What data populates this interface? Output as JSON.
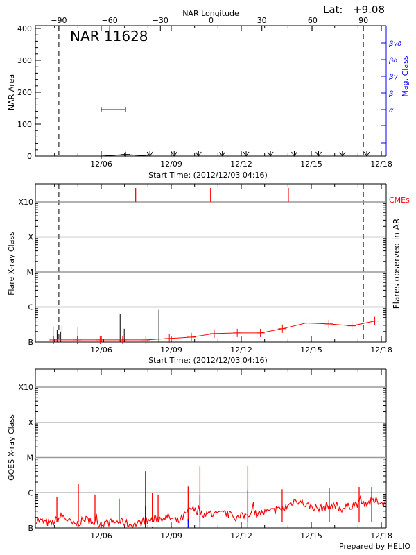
{
  "footer": "Prepared by HELIO",
  "colors": {
    "axis": "#000000",
    "mag_class": "#0000ff",
    "flares_mean": "#ff0000",
    "cme": "#ff0000",
    "goes_long": "#ff0000",
    "goes_short": "#0000ff",
    "grid": "#999999"
  },
  "chart_data": [
    {
      "type": "line",
      "title": "NAR 11628",
      "lat_label": "Lat:",
      "lat_value": "+9.08",
      "xlabel": "Start Time: (2012/12/03 04:16)",
      "ylabel": "NAR Area",
      "ylim": [
        0,
        400
      ],
      "yticks": [
        "0",
        "100",
        "200",
        "300",
        "400"
      ],
      "xticks": [
        "12/06",
        "12/09",
        "12/12",
        "12/15",
        "12/18"
      ],
      "xrange": [
        "2012-12-03 04:16",
        "2012-12-18 04:45"
      ],
      "top_axis": {
        "label": "NAR Longitude",
        "ticks": [
          "-90",
          "-60",
          "-30",
          "0",
          "30",
          "60",
          "90"
        ]
      },
      "limb_longitudes": [
        -90,
        90
      ],
      "right_axis": {
        "label": "Mag. Class",
        "ticks": [
          "α",
          "β",
          "βγ",
          "βδ",
          "βγδ"
        ]
      },
      "area": [
        {
          "time": "2012-12-06 00:00",
          "value": 0
        },
        {
          "time": "2012-12-07 01:00",
          "value": 5
        }
      ],
      "area_zero_markers": [
        "2012-12-08 02:00",
        "2012-12-09 03:00",
        "2012-12-10 04:00",
        "2012-12-11 04:30",
        "2012-12-12 05:00",
        "2012-12-13 06:00",
        "2012-12-14 06:30",
        "2012-12-15 07:30",
        "2012-12-16 08:00",
        "2012-12-17 09:00"
      ],
      "mag_class": [
        {
          "time": "2012-12-06 00:00",
          "class": "α"
        },
        {
          "time": "2012-12-07 01:00",
          "class": "α"
        }
      ]
    },
    {
      "type": "line",
      "xlabel": "Start Time: (2012/12/03 04:16)",
      "ylabel": "Flare X-ray Class",
      "right_label": "Flares observed in AR",
      "cme_label": "CMEs",
      "yscale": "log",
      "ylim": [
        1e-07,
        0.001
      ],
      "yticks": [
        {
          "label": "B",
          "flux": 1e-07
        },
        {
          "label": "C",
          "flux": 1e-06
        },
        {
          "label": "M",
          "flux": 1e-05
        },
        {
          "label": "X",
          "flux": 0.0001
        },
        {
          "label": "X10",
          "flux": 0.001
        }
      ],
      "xticks": [
        "12/06",
        "12/09",
        "12/12",
        "12/15",
        "12/18"
      ],
      "grid": true,
      "flares": [
        {
          "time": "2012-12-03 22:35",
          "flux": 2.7e-07
        },
        {
          "time": "2012-12-04 02:40",
          "flux": 2.2e-07
        },
        {
          "time": "2012-12-04 06:10",
          "flux": 2e-07
        },
        {
          "time": "2012-12-04 07:40",
          "flux": 3.1e-07
        },
        {
          "time": "2012-12-05 00:00",
          "flux": 2.6e-07
        },
        {
          "time": "2012-12-06 02:30",
          "flux": 1.2e-07
        },
        {
          "time": "2012-12-06 19:25",
          "flux": 6.4e-07
        },
        {
          "time": "2012-12-06 23:40",
          "flux": 2.4e-07
        },
        {
          "time": "2012-12-08 11:15",
          "flux": 8.3e-07
        }
      ],
      "mean_flux": [
        {
          "time": "2012-12-03 23:00",
          "flux": 1.15e-07
        },
        {
          "time": "2012-12-04 23:30",
          "flux": 1.15e-07
        },
        {
          "time": "2012-12-05 22:50",
          "flux": 1.15e-07
        },
        {
          "time": "2012-12-06 22:00",
          "flux": 1.15e-07
        },
        {
          "time": "2012-12-07 21:50",
          "flux": 1.15e-07
        },
        {
          "time": "2012-12-08 22:00",
          "flux": 1.26e-07
        },
        {
          "time": "2012-12-09 20:40",
          "flux": 1.38e-07
        },
        {
          "time": "2012-12-10 20:10",
          "flux": 1.74e-07
        },
        {
          "time": "2012-12-11 19:50",
          "flux": 1.82e-07
        },
        {
          "time": "2012-12-12 19:40",
          "flux": 1.82e-07
        },
        {
          "time": "2012-12-13 18:15",
          "flux": 2.4e-07
        },
        {
          "time": "2012-12-14 18:40",
          "flux": 3.5e-07
        },
        {
          "time": "2012-12-15 18:00",
          "flux": 3.3e-07
        },
        {
          "time": "2012-12-16 17:45",
          "flux": 2.9e-07
        },
        {
          "time": "2012-12-17 17:15",
          "flux": 4e-07
        }
      ],
      "cmes": [
        "2012-12-07 11:15",
        "2012-12-07 12:30",
        "2012-12-10 16:20",
        "2012-12-14 00:30"
      ]
    },
    {
      "type": "line",
      "ylabel": "GOES X-ray Class",
      "yscale": "log",
      "ylim": [
        1e-07,
        0.001
      ],
      "yticks": [
        {
          "label": "B",
          "flux": 1e-07
        },
        {
          "label": "C",
          "flux": 1e-06
        },
        {
          "label": "M",
          "flux": 1e-05
        },
        {
          "label": "X",
          "flux": 0.0001
        },
        {
          "label": "X10",
          "flux": 0.001
        }
      ],
      "xticks": [
        "12/06",
        "12/09",
        "12/12",
        "12/15",
        "12/18"
      ],
      "grid": true,
      "long_channel_baseline": [
        {
          "time": "2012-12-03 08:00",
          "flux": 1.64e-07
        },
        {
          "time": "2012-12-03 20:00",
          "flux": 1.31e-07
        },
        {
          "time": "2012-12-04 08:00",
          "flux": 2.2e-07
        },
        {
          "time": "2012-12-04 20:00",
          "flux": 1.2e-07
        },
        {
          "time": "2012-12-05 08:00",
          "flux": 1.77e-07
        },
        {
          "time": "2012-12-05 20:00",
          "flux": 1.31e-07
        },
        {
          "time": "2012-12-06 08:00",
          "flux": 1.41e-07
        },
        {
          "time": "2012-12-06 20:00",
          "flux": 1.52e-07
        },
        {
          "time": "2012-12-07 08:00",
          "flux": 1.2e-07
        },
        {
          "time": "2012-12-07 20:00",
          "flux": 1.52e-07
        },
        {
          "time": "2012-12-08 08:00",
          "flux": 1.77e-07
        },
        {
          "time": "2012-12-08 20:00",
          "flux": 2.06e-07
        },
        {
          "time": "2012-12-09 08:00",
          "flux": 1.52e-07
        },
        {
          "time": "2012-12-09 20:00",
          "flux": 3.5e-07
        },
        {
          "time": "2012-12-10 08:00",
          "flux": 2.6e-07
        },
        {
          "time": "2012-12-10 20:00",
          "flux": 2.4e-07
        },
        {
          "time": "2012-12-11 08:00",
          "flux": 2.6e-07
        },
        {
          "time": "2012-12-11 20:00",
          "flux": 1.9e-07
        },
        {
          "time": "2012-12-12 08:00",
          "flux": 2.6e-07
        },
        {
          "time": "2012-12-12 20:00",
          "flux": 2.6e-07
        },
        {
          "time": "2012-12-13 08:00",
          "flux": 3e-07
        },
        {
          "time": "2012-12-13 20:00",
          "flux": 3.5e-07
        },
        {
          "time": "2012-12-14 08:00",
          "flux": 6.4e-07
        },
        {
          "time": "2012-12-14 20:00",
          "flux": 4.4e-07
        },
        {
          "time": "2012-12-15 08:00",
          "flux": 3.5e-07
        },
        {
          "time": "2012-12-15 20:00",
          "flux": 4.4e-07
        },
        {
          "time": "2012-12-16 08:00",
          "flux": 3.5e-07
        },
        {
          "time": "2012-12-16 20:00",
          "flux": 4.7e-07
        },
        {
          "time": "2012-12-17 08:00",
          "flux": 5.1e-07
        },
        {
          "time": "2012-12-17 20:00",
          "flux": 5.9e-07
        },
        {
          "time": "2012-12-18 04:00",
          "flux": 4.7e-07
        }
      ],
      "long_channel_peaks": [
        {
          "time": "2012-12-04 02:25",
          "flux": 7.4e-07
        },
        {
          "time": "2012-12-05 00:30",
          "flux": 1.8e-06
        },
        {
          "time": "2012-12-05 17:35",
          "flux": 8.9e-07
        },
        {
          "time": "2012-12-06 18:30",
          "flux": 6.8e-07
        },
        {
          "time": "2012-12-07 21:25",
          "flux": 4.1e-06
        },
        {
          "time": "2012-12-08 04:30",
          "flux": 1e-06
        },
        {
          "time": "2012-12-08 10:30",
          "flux": 8.9e-07
        },
        {
          "time": "2012-12-09 17:20",
          "flux": 1.5e-06
        },
        {
          "time": "2012-12-10 05:30",
          "flux": 5.6e-06
        },
        {
          "time": "2012-12-12 06:40",
          "flux": 5.8e-06
        },
        {
          "time": "2012-12-13 18:00",
          "flux": 1.25e-06
        },
        {
          "time": "2012-12-15 18:30",
          "flux": 1.35e-06
        },
        {
          "time": "2012-12-17 01:10",
          "flux": 1.45e-06
        },
        {
          "time": "2012-12-17 14:00",
          "flux": 1.45e-06
        }
      ],
      "short_channel_peaks": [
        {
          "time": "2012-12-07 21:25",
          "flux": 4.2e-07
        },
        {
          "time": "2012-12-08 04:30",
          "flux": 1.1e-07
        },
        {
          "time": "2012-12-09 17:20",
          "flux": 1.8e-07
        },
        {
          "time": "2012-12-10 05:30",
          "flux": 8.7e-07
        },
        {
          "time": "2012-12-12 06:40",
          "flux": 1.15e-06
        }
      ]
    }
  ]
}
